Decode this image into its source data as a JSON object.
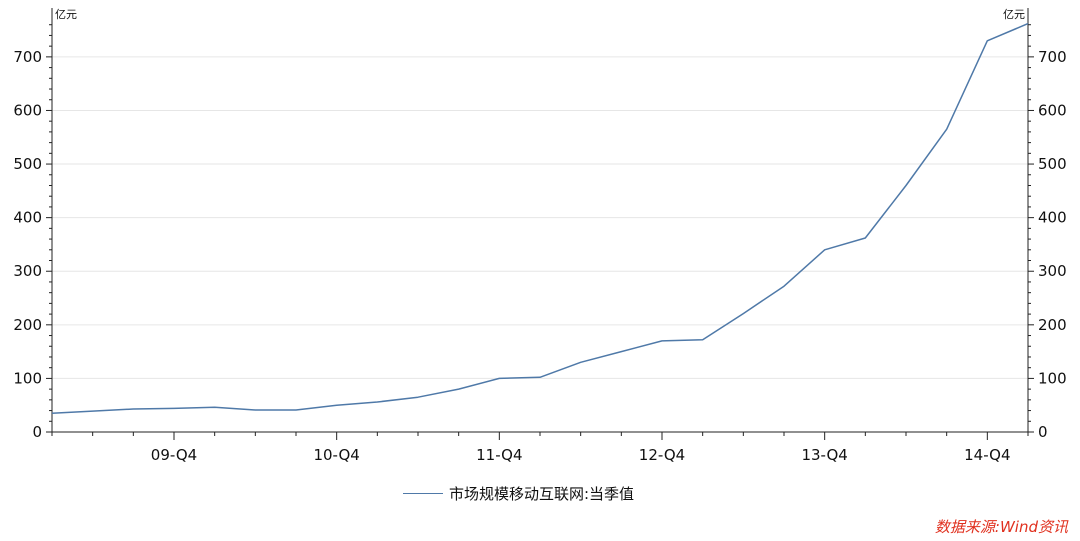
{
  "chart_data": {
    "type": "line",
    "y_unit_left": "亿元",
    "y_unit_right": "亿元",
    "ylim": [
      0,
      780
    ],
    "y_ticks": [
      0,
      100,
      200,
      300,
      400,
      500,
      600,
      700
    ],
    "x_tick_labels": [
      "09-Q4",
      "10-Q4",
      "11-Q4",
      "12-Q4",
      "13-Q4",
      "14-Q4"
    ],
    "grid": true,
    "legend_position": "bottom-center",
    "series": [
      {
        "name": "市场规模移动互联网:当季值",
        "color": "#4f79a8",
        "x": [
          "09-Q1",
          "09-Q2",
          "09-Q3",
          "09-Q4",
          "10-Q1",
          "10-Q2",
          "10-Q3",
          "10-Q4",
          "11-Q1",
          "11-Q2",
          "11-Q3",
          "11-Q4",
          "12-Q1",
          "12-Q2",
          "12-Q3",
          "12-Q4",
          "13-Q1",
          "13-Q2",
          "13-Q3",
          "13-Q4",
          "14-Q1",
          "14-Q2",
          "14-Q3",
          "14-Q4",
          "15-Q1"
        ],
        "values": [
          35,
          39,
          43,
          44,
          46,
          41,
          41,
          50,
          56,
          65,
          80,
          100,
          102,
          130,
          150,
          170,
          172,
          221,
          272,
          340,
          362,
          460,
          565,
          730,
          762
        ]
      }
    ]
  },
  "source_note": "数据来源:Wind资讯"
}
